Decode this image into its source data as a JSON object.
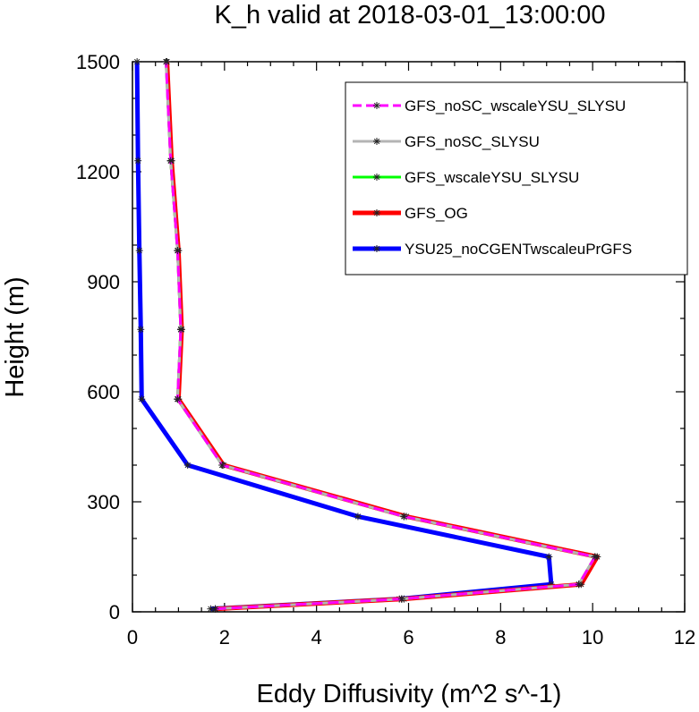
{
  "chart_data": {
    "type": "line",
    "title": "K_h valid at 2018-03-01_13:00:00",
    "xlabel": "Eddy Diffusivity (m^2 s^-1)",
    "ylabel": "Height (m)",
    "xlim": [
      0,
      12
    ],
    "ylim": [
      0,
      1500
    ],
    "xticks": [
      "0",
      "2",
      "4",
      "6",
      "8",
      "10",
      "12"
    ],
    "yticks": [
      "0",
      "300",
      "600",
      "900",
      "1200",
      "1500"
    ],
    "legend_position": "top-right",
    "series": [
      {
        "name": "YSU25_noCGENTwscaleuPrGFS",
        "color": "#0000ff",
        "dash": "solid",
        "x": [
          1.7,
          5.8,
          9.1,
          9.05,
          4.9,
          1.2,
          0.2,
          0.18,
          0.15,
          0.12,
          0.1
        ],
        "y": [
          8,
          35,
          75,
          150,
          260,
          400,
          580,
          770,
          985,
          1230,
          1500
        ]
      },
      {
        "name": "GFS_OG",
        "color": "#ff0000",
        "dash": "solid",
        "x": [
          1.8,
          5.9,
          9.75,
          10.1,
          5.95,
          1.98,
          1.0,
          1.07,
          1.0,
          0.85,
          0.75
        ],
        "y": [
          8,
          35,
          75,
          150,
          260,
          400,
          580,
          770,
          985,
          1230,
          1500
        ]
      },
      {
        "name": "GFS_wscaleYSU_SLYSU",
        "color": "#00ff00",
        "dash": "solid",
        "x": [
          1.8,
          5.85,
          9.7,
          10.05,
          5.9,
          1.95,
          0.98,
          1.05,
          0.98,
          0.83,
          0.73
        ],
        "y": [
          8,
          35,
          75,
          150,
          260,
          400,
          580,
          770,
          985,
          1230,
          1500
        ]
      },
      {
        "name": "GFS_noSC_SLYSU",
        "color": "#b4b4b4",
        "dash": "solid",
        "x": [
          1.8,
          5.85,
          9.7,
          10.05,
          5.9,
          1.95,
          0.98,
          1.05,
          0.98,
          0.83,
          0.73
        ],
        "y": [
          8,
          35,
          75,
          150,
          260,
          400,
          580,
          770,
          985,
          1230,
          1500
        ]
      },
      {
        "name": "GFS_noSC_wscaleYSU_SLYSU",
        "color": "#ff00ff",
        "dash": "dashed",
        "x": [
          1.8,
          5.85,
          9.7,
          10.05,
          5.9,
          1.95,
          0.98,
          1.05,
          0.98,
          0.83,
          0.73
        ],
        "y": [
          8,
          35,
          75,
          150,
          260,
          400,
          580,
          770,
          985,
          1230,
          1500
        ]
      }
    ],
    "legend": [
      {
        "name": "GFS_noSC_wscaleYSU_SLYSU",
        "color": "#ff00ff",
        "dash": "dashed"
      },
      {
        "name": "GFS_noSC_SLYSU",
        "color": "#b4b4b4",
        "dash": "solid"
      },
      {
        "name": "GFS_wscaleYSU_SLYSU",
        "color": "#00ff00",
        "dash": "solid"
      },
      {
        "name": "GFS_OG",
        "color": "#ff0000",
        "dash": "solid"
      },
      {
        "name": "YSU25_noCGENTwscaleuPrGFS",
        "color": "#0000ff",
        "dash": "solid"
      }
    ]
  }
}
